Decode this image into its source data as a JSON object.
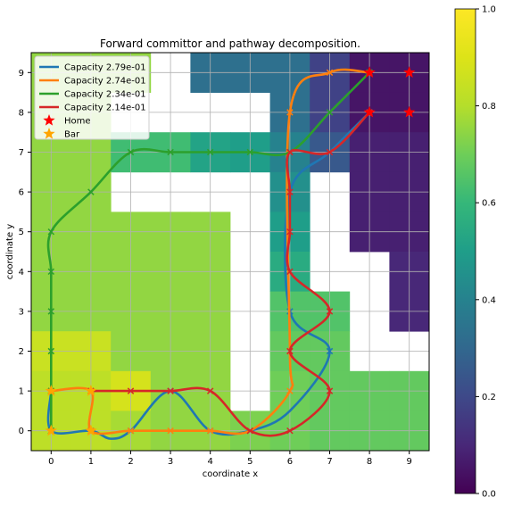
{
  "chart_data": {
    "type": "heatmap",
    "title": "Forward committor and pathway decomposition.",
    "xlabel": "coordinate x",
    "ylabel": "coordinate y",
    "xlim": [
      -0.5,
      9.5
    ],
    "ylim": [
      -0.5,
      9.5
    ],
    "x_ticks": [
      "0",
      "1",
      "2",
      "3",
      "4",
      "5",
      "6",
      "7",
      "8",
      "9"
    ],
    "y_ticks": [
      "0",
      "1",
      "2",
      "3",
      "4",
      "5",
      "6",
      "7",
      "8",
      "9"
    ],
    "grid": true,
    "colormap": "viridis",
    "colorbar": {
      "range": [
        0,
        1
      ],
      "ticks": [
        "0.0",
        "0.2",
        "0.4",
        "0.6",
        "0.8",
        "1.0"
      ]
    },
    "committor_grid_rows_top_to_bottom": [
      [
        0.75,
        0.75,
        0.75,
        null,
        0.33,
        0.33,
        0.33,
        0.18,
        0.05,
        0.05
      ],
      [
        0.75,
        0.75,
        null,
        null,
        null,
        null,
        0.33,
        0.18,
        0.05,
        0.05
      ],
      [
        0.75,
        0.75,
        0.62,
        0.62,
        0.52,
        0.5,
        0.4,
        0.25,
        0.08,
        0.08
      ],
      [
        0.75,
        0.75,
        null,
        null,
        null,
        null,
        0.45,
        null,
        0.08,
        0.08
      ],
      [
        0.75,
        0.75,
        0.75,
        0.75,
        0.75,
        null,
        0.5,
        null,
        0.08,
        0.08
      ],
      [
        0.75,
        0.75,
        0.75,
        0.75,
        0.75,
        null,
        0.55,
        null,
        null,
        0.1
      ],
      [
        0.75,
        0.75,
        0.75,
        0.75,
        0.75,
        null,
        0.65,
        0.65,
        null,
        0.1
      ],
      [
        0.85,
        0.85,
        0.75,
        0.75,
        0.75,
        null,
        0.68,
        0.68,
        null,
        null
      ],
      [
        0.82,
        0.82,
        0.88,
        0.75,
        0.75,
        null,
        0.7,
        0.68,
        0.68,
        0.68
      ],
      [
        0.82,
        0.82,
        0.78,
        0.75,
        0.75,
        0.72,
        0.7,
        0.68,
        0.68,
        0.68
      ]
    ],
    "series": [
      {
        "name": "Capacity 2.79e-01",
        "color": "#1f77b4",
        "points": [
          [
            0,
            1
          ],
          [
            0,
            0
          ],
          [
            1,
            0
          ],
          [
            1.5,
            -0.2
          ],
          [
            2,
            0
          ],
          [
            3,
            1
          ],
          [
            4,
            0
          ],
          [
            5,
            0
          ],
          [
            6,
            0.5
          ],
          [
            7,
            2
          ],
          [
            6,
            3
          ],
          [
            6,
            6
          ],
          [
            7,
            7
          ],
          [
            8,
            8
          ]
        ]
      },
      {
        "name": "Capacity 2.74e-01",
        "color": "#ff7f0e",
        "points": [
          [
            0,
            1
          ],
          [
            1,
            1
          ],
          [
            1,
            0
          ],
          [
            2,
            0
          ],
          [
            3,
            0
          ],
          [
            4,
            0
          ],
          [
            5,
            0
          ],
          [
            6,
            1
          ],
          [
            6,
            2
          ],
          [
            6,
            8
          ],
          [
            7,
            9
          ],
          [
            8,
            9
          ]
        ]
      },
      {
        "name": "Capacity 2.34e-01",
        "color": "#2ca02c",
        "points": [
          [
            0,
            0
          ],
          [
            0,
            1
          ],
          [
            0,
            2
          ],
          [
            0,
            3
          ],
          [
            0,
            4
          ],
          [
            0,
            5
          ],
          [
            1,
            6
          ],
          [
            2,
            7
          ],
          [
            3,
            7
          ],
          [
            4,
            7
          ],
          [
            5,
            7
          ],
          [
            6,
            7
          ],
          [
            7,
            8
          ],
          [
            8,
            9
          ]
        ]
      },
      {
        "name": "Capacity 2.14e-01",
        "color": "#d62728",
        "points": [
          [
            1,
            1
          ],
          [
            2,
            1
          ],
          [
            3,
            1
          ],
          [
            4,
            1
          ],
          [
            5,
            0
          ],
          [
            6,
            0
          ],
          [
            7,
            1
          ],
          [
            6,
            2
          ],
          [
            7,
            3
          ],
          [
            6,
            4
          ],
          [
            6,
            5
          ],
          [
            6,
            6
          ],
          [
            6,
            7
          ],
          [
            7,
            7
          ],
          [
            8,
            8
          ]
        ]
      }
    ],
    "markers": [
      {
        "name": "Home",
        "color": "#ff0000",
        "points": [
          [
            8,
            8
          ],
          [
            9,
            8
          ],
          [
            8,
            9
          ],
          [
            9,
            9
          ]
        ]
      },
      {
        "name": "Bar",
        "color": "#ffa500",
        "points": [
          [
            0,
            0
          ],
          [
            0,
            1
          ],
          [
            1,
            0
          ],
          [
            1,
            1
          ]
        ]
      }
    ],
    "legend_position": "top-left"
  }
}
